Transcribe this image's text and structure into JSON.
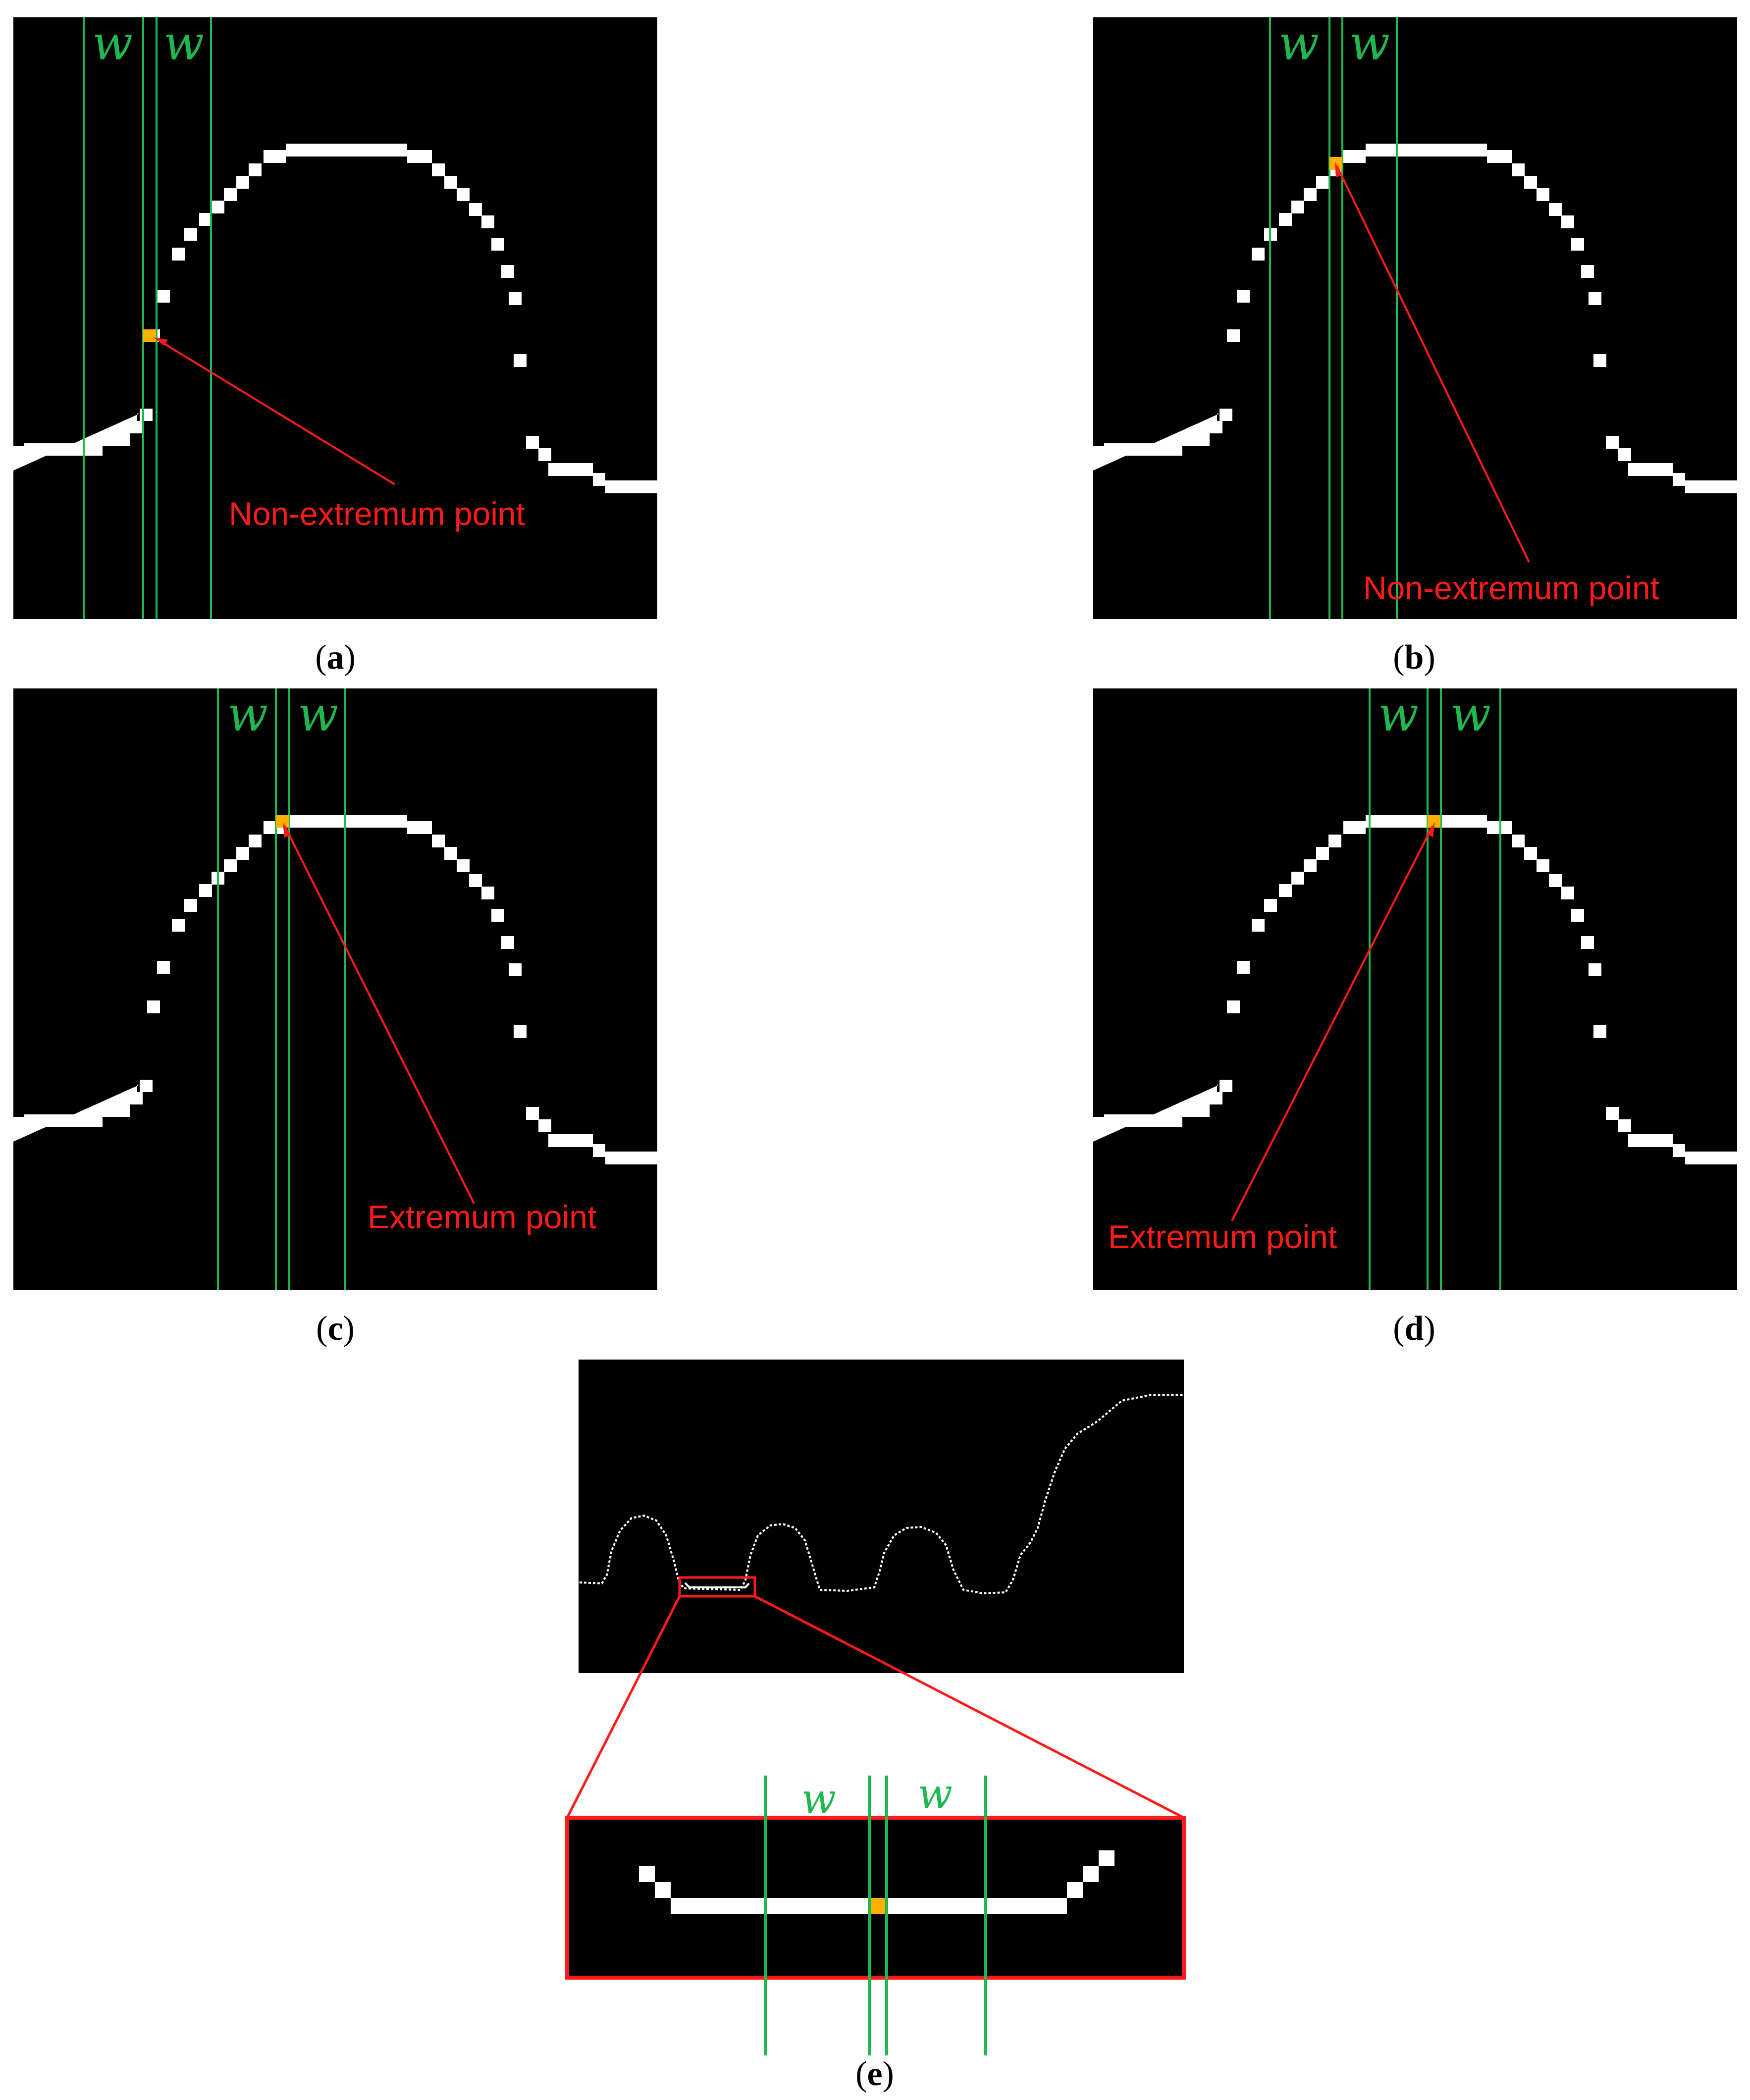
{
  "window_label": "w",
  "panels": [
    {
      "id": "a",
      "caption": "a",
      "annotation": "Non-extremum point"
    },
    {
      "id": "b",
      "caption": "b",
      "annotation": "Non-extremum point"
    },
    {
      "id": "c",
      "caption": "c",
      "annotation": "Extremum point"
    },
    {
      "id": "d",
      "caption": "d",
      "annotation": "Extremum point"
    },
    {
      "id": "e",
      "caption": "e"
    }
  ],
  "colors": {
    "background": "#000000",
    "curve": "#ffffff",
    "window_lines": "#1fb84e",
    "annotation": "#ff1a1a",
    "highlight_pixel": "#ffb000"
  }
}
